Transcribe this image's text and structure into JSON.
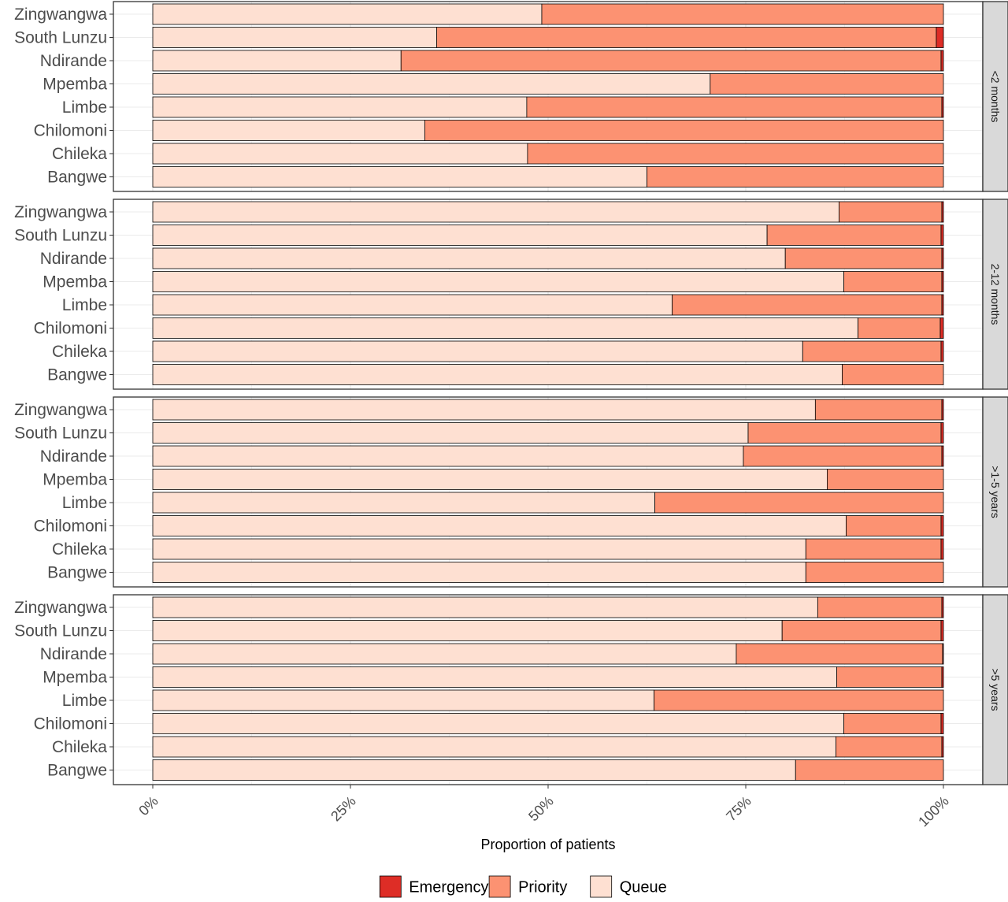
{
  "chart_data": {
    "type": "bar",
    "orientation": "horizontal",
    "stacked": true,
    "xlabel": "Proportion of patients",
    "ylabel": "",
    "x_ticks": [
      "0%",
      "25%",
      "50%",
      "75%",
      "100%"
    ],
    "xlim": [
      0,
      1
    ],
    "grid": true,
    "legend_position": "bottom",
    "categories": [
      "Zingwangwa",
      "South Lunzu",
      "Ndirande",
      "Mpemba",
      "Limbe",
      "Chilomoni",
      "Chileka",
      "Bangwe"
    ],
    "series_order": [
      "Queue",
      "Priority",
      "Emergency"
    ],
    "legend": [
      {
        "name": "Emergency",
        "color": "#de2d26"
      },
      {
        "name": "Priority",
        "color": "#fc9272"
      },
      {
        "name": "Queue",
        "color": "#fee0d2"
      }
    ],
    "panels": [
      {
        "label": "<2 months",
        "rows": [
          {
            "site": "Zingwangwa",
            "queue": 0.492,
            "priority": 0.508,
            "emergency": 0.0
          },
          {
            "site": "South Lunzu",
            "queue": 0.359,
            "priority": 0.632,
            "emergency": 0.009
          },
          {
            "site": "Ndirande",
            "queue": 0.314,
            "priority": 0.683,
            "emergency": 0.003
          },
          {
            "site": "Mpemba",
            "queue": 0.705,
            "priority": 0.295,
            "emergency": 0.0
          },
          {
            "site": "Limbe",
            "queue": 0.473,
            "priority": 0.525,
            "emergency": 0.002
          },
          {
            "site": "Chilomoni",
            "queue": 0.344,
            "priority": 0.656,
            "emergency": 0.0
          },
          {
            "site": "Chileka",
            "queue": 0.474,
            "priority": 0.526,
            "emergency": 0.0
          },
          {
            "site": "Bangwe",
            "queue": 0.625,
            "priority": 0.375,
            "emergency": 0.0
          }
        ]
      },
      {
        "label": "2-12 months",
        "rows": [
          {
            "site": "Zingwangwa",
            "queue": 0.868,
            "priority": 0.13,
            "emergency": 0.002
          },
          {
            "site": "South Lunzu",
            "queue": 0.777,
            "priority": 0.22,
            "emergency": 0.003
          },
          {
            "site": "Ndirande",
            "queue": 0.8,
            "priority": 0.198,
            "emergency": 0.002
          },
          {
            "site": "Mpemba",
            "queue": 0.874,
            "priority": 0.124,
            "emergency": 0.002
          },
          {
            "site": "Limbe",
            "queue": 0.657,
            "priority": 0.341,
            "emergency": 0.002
          },
          {
            "site": "Chilomoni",
            "queue": 0.892,
            "priority": 0.104,
            "emergency": 0.004
          },
          {
            "site": "Chileka",
            "queue": 0.822,
            "priority": 0.175,
            "emergency": 0.003
          },
          {
            "site": "Bangwe",
            "queue": 0.872,
            "priority": 0.128,
            "emergency": 0.0
          }
        ]
      },
      {
        "label": ">1-5 years",
        "rows": [
          {
            "site": "Zingwangwa",
            "queue": 0.838,
            "priority": 0.16,
            "emergency": 0.002
          },
          {
            "site": "South Lunzu",
            "queue": 0.753,
            "priority": 0.244,
            "emergency": 0.003
          },
          {
            "site": "Ndirande",
            "queue": 0.747,
            "priority": 0.251,
            "emergency": 0.002
          },
          {
            "site": "Mpemba",
            "queue": 0.853,
            "priority": 0.147,
            "emergency": 0.0
          },
          {
            "site": "Limbe",
            "queue": 0.635,
            "priority": 0.365,
            "emergency": 0.0
          },
          {
            "site": "Chilomoni",
            "queue": 0.877,
            "priority": 0.12,
            "emergency": 0.003
          },
          {
            "site": "Chileka",
            "queue": 0.826,
            "priority": 0.171,
            "emergency": 0.003
          },
          {
            "site": "Bangwe",
            "queue": 0.826,
            "priority": 0.174,
            "emergency": 0.0
          }
        ]
      },
      {
        "label": ">5 years",
        "rows": [
          {
            "site": "Zingwangwa",
            "queue": 0.841,
            "priority": 0.157,
            "emergency": 0.002
          },
          {
            "site": "South Lunzu",
            "queue": 0.796,
            "priority": 0.201,
            "emergency": 0.003
          },
          {
            "site": "Ndirande",
            "queue": 0.738,
            "priority": 0.261,
            "emergency": 0.001
          },
          {
            "site": "Mpemba",
            "queue": 0.865,
            "priority": 0.133,
            "emergency": 0.002
          },
          {
            "site": "Limbe",
            "queue": 0.634,
            "priority": 0.366,
            "emergency": 0.0
          },
          {
            "site": "Chilomoni",
            "queue": 0.874,
            "priority": 0.123,
            "emergency": 0.003
          },
          {
            "site": "Chileka",
            "queue": 0.864,
            "priority": 0.134,
            "emergency": 0.002
          },
          {
            "site": "Bangwe",
            "queue": 0.813,
            "priority": 0.187,
            "emergency": 0.0
          }
        ]
      }
    ]
  }
}
